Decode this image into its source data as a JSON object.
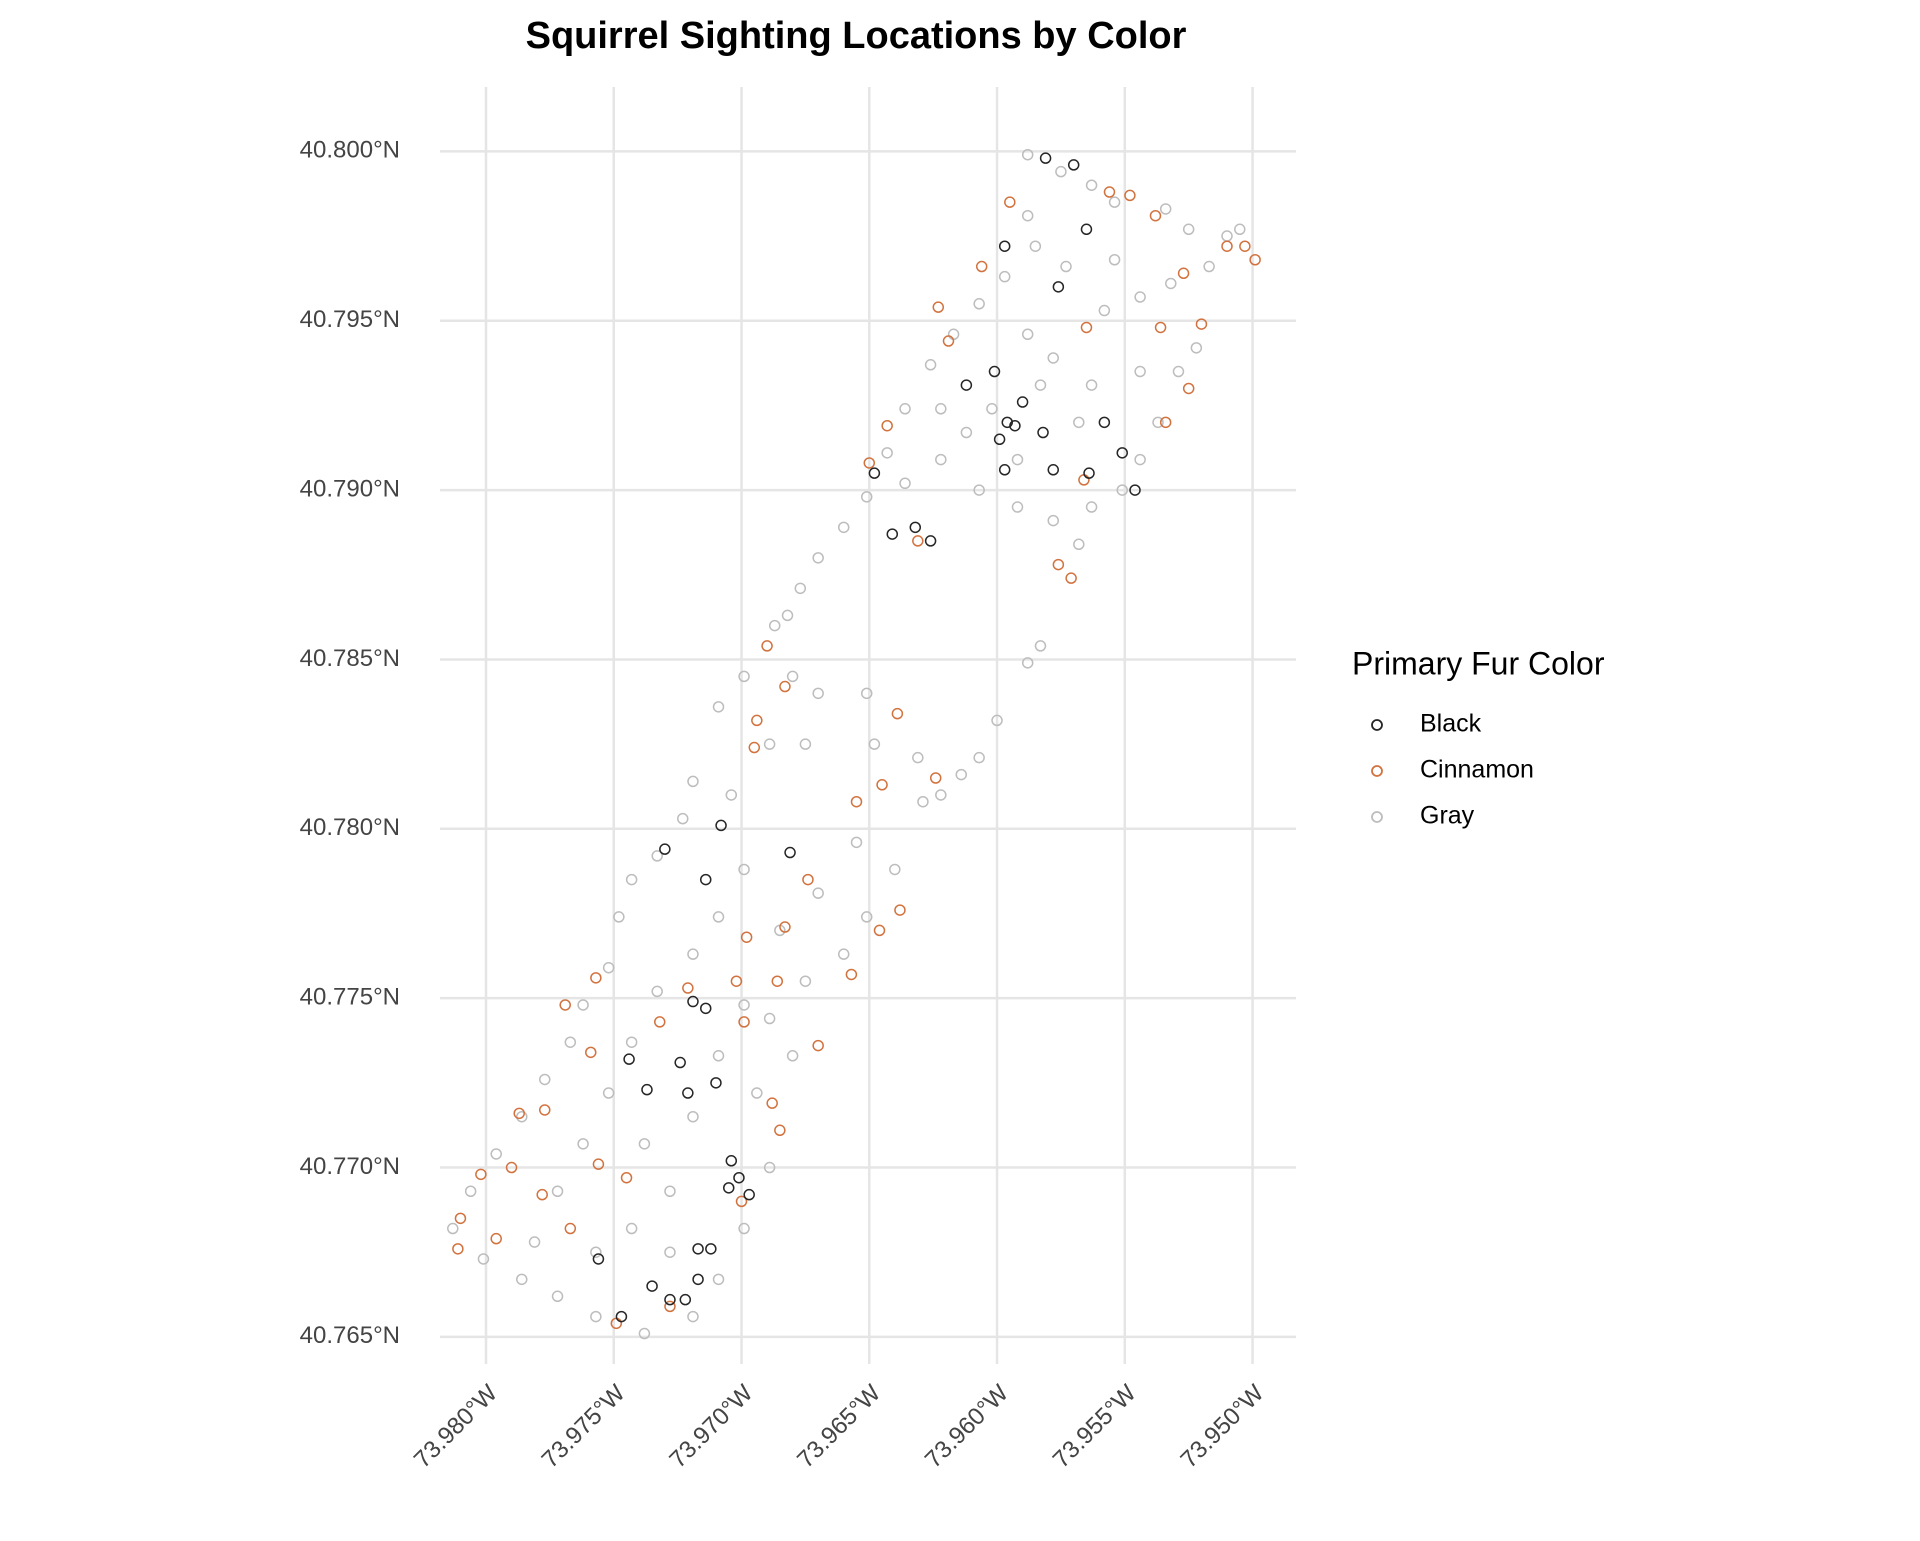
{
  "chart_data": {
    "type": "scatter",
    "title": "Squirrel Sighting Locations by Color",
    "legend_title": "Primary Fur Color",
    "legend_position": "right",
    "grid": true,
    "xlim": [
      -73.9818,
      -73.9483
    ],
    "ylim": [
      40.7642,
      40.8019
    ],
    "xticks": [
      {
        "value": -73.98,
        "label": "73.980°W"
      },
      {
        "value": -73.975,
        "label": "73.975°W"
      },
      {
        "value": -73.97,
        "label": "73.970°W"
      },
      {
        "value": -73.965,
        "label": "73.965°W"
      },
      {
        "value": -73.96,
        "label": "73.960°W"
      },
      {
        "value": -73.955,
        "label": "73.955°W"
      },
      {
        "value": -73.95,
        "label": "73.950°W"
      }
    ],
    "yticks": [
      {
        "value": 40.765,
        "label": "40.765°N"
      },
      {
        "value": 40.77,
        "label": "40.770°N"
      },
      {
        "value": 40.775,
        "label": "40.775°N"
      },
      {
        "value": 40.78,
        "label": "40.780°N"
      },
      {
        "value": 40.785,
        "label": "40.785°N"
      },
      {
        "value": 40.79,
        "label": "40.790°N"
      },
      {
        "value": 40.795,
        "label": "40.795°N"
      },
      {
        "value": 40.8,
        "label": "40.800°N"
      }
    ],
    "series": [
      {
        "name": "Gray",
        "color": "#bdbdbd",
        "x": [
          -73.9588,
          -73.9575,
          -73.9563,
          -73.9554,
          -73.9534,
          -73.9525,
          -73.951,
          -73.9517,
          -73.9532,
          -73.9544,
          -73.9558,
          -73.9573,
          -73.9585,
          -73.9597,
          -73.9607,
          -73.9617,
          -73.9626,
          -73.9636,
          -73.9643,
          -73.9651,
          -73.9636,
          -73.9622,
          -73.9607,
          -73.9592,
          -73.9578,
          -73.9568,
          -73.9563,
          -73.9551,
          -73.9544,
          -73.9537,
          -73.9529,
          -73.9522,
          -73.9544,
          -73.9563,
          -73.9578,
          -73.9588,
          -73.9583,
          -73.9568,
          -73.9602,
          -73.9612,
          -73.9622,
          -73.9592,
          -73.9588,
          -73.9554,
          -73.9505,
          -73.966,
          -73.967,
          -73.9677,
          -73.9682,
          -73.9687,
          -73.9583,
          -73.9588,
          -73.96,
          -73.9607,
          -73.9614,
          -73.9622,
          -73.9629,
          -73.9699,
          -73.968,
          -73.967,
          -73.9709,
          -73.9719,
          -73.9689,
          -73.9675,
          -73.9651,
          -73.9648,
          -73.9631,
          -73.9655,
          -73.964,
          -73.9651,
          -73.966,
          -73.9675,
          -73.9689,
          -73.968,
          -73.9694,
          -73.9689,
          -73.9699,
          -73.9709,
          -73.9719,
          -73.9738,
          -73.9757,
          -73.9772,
          -73.9786,
          -73.9801,
          -73.9813,
          -73.9806,
          -73.9796,
          -73.9786,
          -73.9777,
          -73.9767,
          -73.9762,
          -73.9752,
          -73.9748,
          -73.9743,
          -73.9733,
          -73.9723,
          -73.9704,
          -73.9699,
          -73.9709,
          -73.9719,
          -73.9733,
          -73.9743,
          -73.9752,
          -73.9762,
          -73.9772,
          -73.9781,
          -73.9738,
          -73.9728,
          -73.9719,
          -73.9709,
          -73.9699,
          -73.9685,
          -73.967,
          -73.9743,
          -73.9757,
          -73.9728
        ],
        "values": [
          40.7999,
          40.7994,
          40.799,
          40.7985,
          40.7983,
          40.7977,
          40.7975,
          40.7966,
          40.7961,
          40.7957,
          40.7953,
          40.7966,
          40.7972,
          40.7963,
          40.7955,
          40.7946,
          40.7937,
          40.7924,
          40.7911,
          40.7898,
          40.7902,
          40.7909,
          40.79,
          40.7895,
          40.7891,
          40.7884,
          40.7895,
          40.79,
          40.7909,
          40.792,
          40.7935,
          40.7942,
          40.7935,
          40.7931,
          40.7939,
          40.7946,
          40.7931,
          40.792,
          40.7924,
          40.7917,
          40.7924,
          40.7909,
          40.7981,
          40.7968,
          40.7977,
          40.7889,
          40.788,
          40.7871,
          40.7863,
          40.786,
          40.7854,
          40.7849,
          40.7832,
          40.7821,
          40.7816,
          40.781,
          40.7808,
          40.7845,
          40.7845,
          40.784,
          40.7836,
          40.7814,
          40.7825,
          40.7825,
          40.784,
          40.7825,
          40.7821,
          40.7796,
          40.7788,
          40.7774,
          40.7763,
          40.7755,
          40.7744,
          40.7733,
          40.7722,
          40.77,
          40.7682,
          40.7667,
          40.7656,
          40.7651,
          40.7656,
          40.7662,
          40.7667,
          40.7673,
          40.7682,
          40.7693,
          40.7704,
          40.7715,
          40.7726,
          40.7737,
          40.7748,
          40.7759,
          40.7774,
          40.7785,
          40.7792,
          40.7803,
          40.781,
          40.7788,
          40.7774,
          40.7763,
          40.7752,
          40.7737,
          40.7722,
          40.7707,
          40.7693,
          40.7678,
          40.7707,
          40.7693,
          40.7715,
          40.7733,
          40.7748,
          40.777,
          40.7781,
          40.7682,
          40.7675,
          40.7675
        ]
      },
      {
        "name": "Cinnamon",
        "color": "#d2733f",
        "x": [
          -73.9595,
          -73.9556,
          -73.9548,
          -73.9538,
          -73.9527,
          -73.951,
          -73.9503,
          -73.9499,
          -73.952,
          -73.9536,
          -73.9565,
          -73.9606,
          -73.9619,
          -73.9623,
          -73.9534,
          -73.9525,
          -73.9566,
          -73.9576,
          -73.9571,
          -73.9631,
          -73.965,
          -73.9643,
          -73.969,
          -73.9683,
          -73.9694,
          -73.9695,
          -73.9639,
          -73.9645,
          -73.9624,
          -73.9655,
          -73.9638,
          -73.9646,
          -73.9657,
          -73.9674,
          -73.9683,
          -73.9698,
          -73.9686,
          -73.9699,
          -73.967,
          -73.9702,
          -73.9721,
          -73.9732,
          -73.9757,
          -73.9769,
          -73.9759,
          -73.9777,
          -73.9787,
          -73.979,
          -73.9802,
          -73.981,
          -73.9811,
          -73.9796,
          -73.9778,
          -73.9767,
          -73.9756,
          -73.9745,
          -73.9728,
          -73.9749,
          -73.9685,
          -73.97,
          -73.9688
        ],
        "values": [
          40.7985,
          40.7988,
          40.7987,
          40.7981,
          40.7964,
          40.7972,
          40.7972,
          40.7968,
          40.7949,
          40.7948,
          40.7948,
          40.7966,
          40.7944,
          40.7954,
          40.792,
          40.793,
          40.7903,
          40.7878,
          40.7874,
          40.7885,
          40.7908,
          40.7919,
          40.7854,
          40.7842,
          40.7832,
          40.7824,
          40.7834,
          40.7813,
          40.7815,
          40.7808,
          40.7776,
          40.777,
          40.7757,
          40.7785,
          40.7771,
          40.7768,
          40.7755,
          40.7743,
          40.7736,
          40.7755,
          40.7753,
          40.7743,
          40.7756,
          40.7748,
          40.7734,
          40.7717,
          40.7716,
          40.77,
          40.7698,
          40.7685,
          40.7676,
          40.7679,
          40.7692,
          40.7682,
          40.7701,
          40.7697,
          40.7659,
          40.7654,
          40.7711,
          40.769,
          40.7719
        ]
      },
      {
        "name": "Black",
        "color": "#262626",
        "x": [
          -73.9581,
          -73.957,
          -73.9565,
          -73.9597,
          -73.9576,
          -73.9601,
          -73.9593,
          -73.9596,
          -73.959,
          -73.9599,
          -73.9597,
          -73.9578,
          -73.9582,
          -73.9558,
          -73.9551,
          -73.9546,
          -73.9564,
          -73.9612,
          -73.9648,
          -73.9632,
          -73.9626,
          -73.9641,
          -73.9708,
          -73.973,
          -73.9681,
          -73.9714,
          -73.9719,
          -73.9714,
          -73.9744,
          -73.9724,
          -73.9737,
          -73.9721,
          -73.971,
          -73.9704,
          -73.9701,
          -73.9705,
          -73.9697,
          -73.9712,
          -73.9717,
          -73.9747,
          -73.9728,
          -73.9722,
          -73.9717,
          -73.9735,
          -73.9756
        ],
        "values": [
          40.7998,
          40.7996,
          40.7977,
          40.7972,
          40.796,
          40.7935,
          40.7919,
          40.792,
          40.7926,
          40.7915,
          40.7906,
          40.7906,
          40.7917,
          40.792,
          40.7911,
          40.79,
          40.7905,
          40.7931,
          40.7905,
          40.7889,
          40.7885,
          40.7887,
          40.7801,
          40.7794,
          40.7793,
          40.7785,
          40.7749,
          40.7747,
          40.7732,
          40.7731,
          40.7723,
          40.7722,
          40.7725,
          40.7702,
          40.7697,
          40.7694,
          40.7692,
          40.7676,
          40.7676,
          40.7656,
          40.7661,
          40.7661,
          40.7667,
          40.7665,
          40.7673
        ]
      }
    ],
    "legend_order": [
      2,
      1,
      0
    ]
  }
}
